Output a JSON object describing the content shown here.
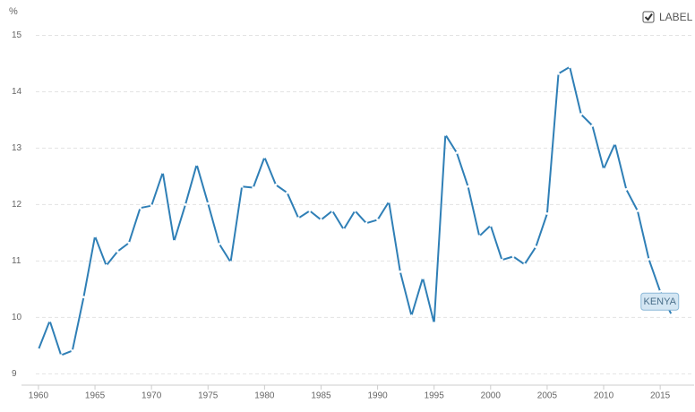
{
  "chart_data": {
    "type": "line",
    "y_unit": "%",
    "toggle_label": "LABEL",
    "x": [
      1960,
      1961,
      1962,
      1963,
      1964,
      1965,
      1966,
      1967,
      1968,
      1969,
      1970,
      1971,
      1972,
      1973,
      1974,
      1975,
      1976,
      1977,
      1978,
      1979,
      1980,
      1981,
      1982,
      1983,
      1984,
      1985,
      1986,
      1987,
      1988,
      1989,
      1990,
      1991,
      1992,
      1993,
      1994,
      1995,
      1996,
      1997,
      1998,
      1999,
      2000,
      2001,
      2002,
      2003,
      2004,
      2005,
      2006,
      2007,
      2008,
      2009,
      2010,
      2011,
      2012,
      2013,
      2014,
      2015,
      2016
    ],
    "series": [
      {
        "name": "KENYA",
        "color": "#2f7fb6",
        "values": [
          9.43,
          9.94,
          9.33,
          9.41,
          10.36,
          11.44,
          10.92,
          11.17,
          11.32,
          11.94,
          11.98,
          12.57,
          11.35,
          12.0,
          12.71,
          12.02,
          11.3,
          10.98,
          12.32,
          12.3,
          12.84,
          12.35,
          12.21,
          11.76,
          11.89,
          11.73,
          11.89,
          11.56,
          11.89,
          11.67,
          11.73,
          12.05,
          10.81,
          10.03,
          10.7,
          9.9,
          13.24,
          12.92,
          12.32,
          11.44,
          11.63,
          11.02,
          11.08,
          10.94,
          11.25,
          11.84,
          14.32,
          14.44,
          13.6,
          13.4,
          12.63,
          13.08,
          12.27,
          11.89,
          11.03,
          10.46,
          10.05
        ]
      }
    ],
    "xlim": [
      1958.5,
      2018
    ],
    "xticks": [
      1960,
      1965,
      1970,
      1975,
      1980,
      1985,
      1990,
      1995,
      2000,
      2005,
      2010,
      2015
    ],
    "ylim": [
      8.8,
      15.15
    ],
    "yticks": [
      9,
      10,
      11,
      12,
      13,
      14,
      15
    ],
    "grid": true
  }
}
